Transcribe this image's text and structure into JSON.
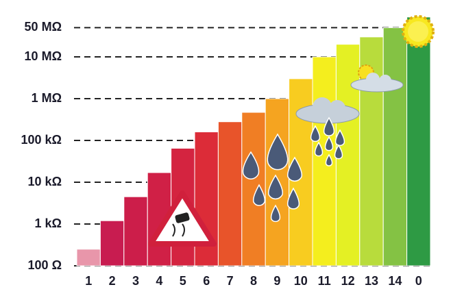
{
  "chart_data": {
    "type": "bar",
    "log": true,
    "categories": [
      "1",
      "2",
      "3",
      "4",
      "5",
      "6",
      "7",
      "8",
      "9",
      "10",
      "11",
      "12",
      "13",
      "14",
      "0"
    ],
    "values": [
      250,
      1200,
      4500,
      17000,
      65000,
      160000,
      280000,
      470000,
      1000000,
      3000000,
      10000000,
      20000000,
      30000000,
      50000000,
      90000000
    ],
    "colors": [
      "#e896aa",
      "#c81c50",
      "#cc1e4a",
      "#d02046",
      "#d42440",
      "#dc2c38",
      "#e8542a",
      "#f07e24",
      "#f5a420",
      "#f8cc20",
      "#f4ee1e",
      "#e4f024",
      "#b8dc3c",
      "#84c244",
      "#2e9a44"
    ],
    "ylim": [
      100,
      100000000
    ],
    "yticks": [
      {
        "value": 100,
        "label": "100 Ω"
      },
      {
        "value": 1000,
        "label": "1 kΩ"
      },
      {
        "value": 10000,
        "label": "10 kΩ"
      },
      {
        "value": 100000,
        "label": "100 kΩ"
      },
      {
        "value": 1000000,
        "label": "1 MΩ"
      },
      {
        "value": 10000000,
        "label": "10 MΩ"
      },
      {
        "value": 50000000,
        "label": "50 MΩ"
      }
    ],
    "grid": true
  }
}
